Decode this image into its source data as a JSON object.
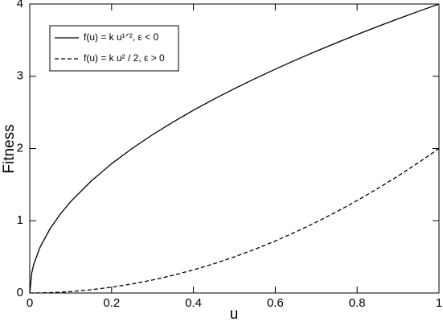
{
  "chart_data": {
    "type": "line",
    "x_label": "u",
    "y_label": "Fitness",
    "x": [
      0,
      0.005,
      0.01,
      0.025,
      0.05,
      0.075,
      0.1,
      0.15,
      0.2,
      0.25,
      0.3,
      0.35,
      0.4,
      0.45,
      0.5,
      0.55,
      0.6,
      0.65,
      0.7,
      0.75,
      0.8,
      0.85,
      0.9,
      0.95,
      1
    ],
    "series": [
      {
        "name": "f(u) = k u¹ᐟ², ε < 0",
        "color": "#000000",
        "dash": false,
        "values": [
          0,
          0.283,
          0.4,
          0.632,
          0.894,
          1.095,
          1.265,
          1.549,
          1.789,
          2,
          2.191,
          2.366,
          2.53,
          2.683,
          2.828,
          2.966,
          3.098,
          3.225,
          3.347,
          3.464,
          3.578,
          3.688,
          3.795,
          3.899,
          4
        ]
      },
      {
        "name": "f(u) = k u² / 2,  ε > 0",
        "color": "#000000",
        "dash": true,
        "values": [
          0,
          5e-05,
          0.0002,
          0.00125,
          0.005,
          0.01125,
          0.02,
          0.045,
          0.08,
          0.125,
          0.18,
          0.245,
          0.32,
          0.405,
          0.5,
          0.605,
          0.72,
          0.845,
          0.98,
          1.125,
          1.28,
          1.445,
          1.62,
          1.805,
          2
        ]
      }
    ],
    "xlim": [
      0,
      1
    ],
    "ylim": [
      0,
      4
    ],
    "xticks": [
      0,
      0.2,
      0.4,
      0.6,
      0.8,
      1
    ],
    "yticks": [
      0,
      1,
      2,
      3,
      4
    ],
    "grid": false,
    "legend": "upper-left"
  }
}
